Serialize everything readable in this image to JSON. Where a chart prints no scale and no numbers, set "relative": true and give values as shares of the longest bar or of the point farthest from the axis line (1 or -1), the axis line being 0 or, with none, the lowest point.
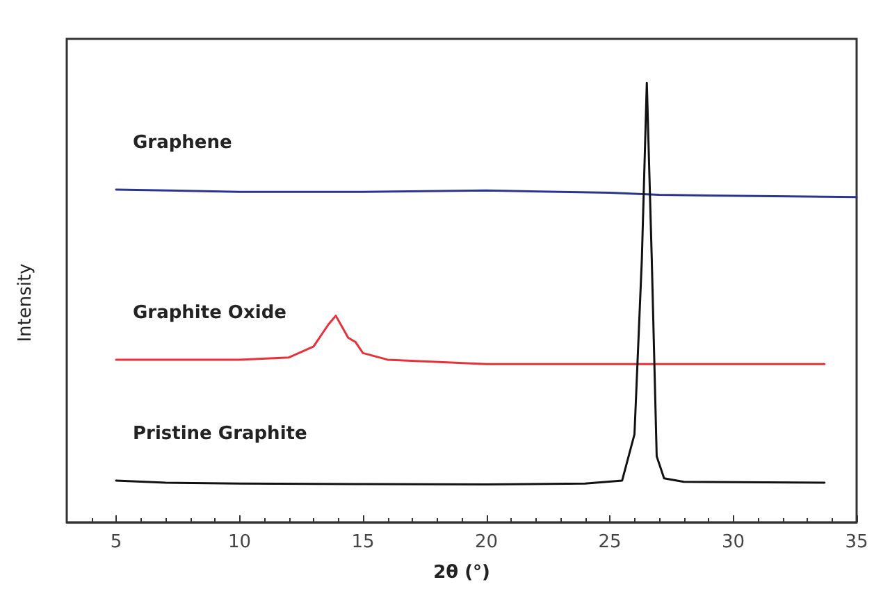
{
  "chart_data": {
    "type": "line",
    "relative": true,
    "xlabel": "2θ (°)",
    "ylabel": "Intensity",
    "xlim": [
      3,
      35
    ],
    "xticks": [
      5,
      10,
      15,
      20,
      25,
      30,
      35
    ],
    "grid": false,
    "legend": false,
    "marker": "none",
    "line_style": "solid",
    "series": [
      {
        "name": "Graphene",
        "color": "#2a3590",
        "x": [
          5,
          10,
          15,
          20,
          25,
          27,
          35
        ],
        "values": [
          0.757,
          0.752,
          0.752,
          0.755,
          0.75,
          0.745,
          0.74
        ]
      },
      {
        "name": "Graphite Oxide",
        "color": "#e8303a",
        "x": [
          5,
          10,
          12,
          13,
          13.6,
          13.9,
          14.2,
          14.4,
          14.7,
          15,
          16,
          20,
          25,
          33.7
        ],
        "values": [
          0.37,
          0.37,
          0.375,
          0.4,
          0.45,
          0.47,
          0.44,
          0.42,
          0.41,
          0.385,
          0.37,
          0.36,
          0.36,
          0.36
        ]
      },
      {
        "name": "Pristine Graphite",
        "color": "#111111",
        "x": [
          5,
          7,
          10,
          15,
          20,
          24,
          25.5,
          26,
          26.3,
          26.5,
          26.7,
          26.9,
          27.2,
          28,
          33.7
        ],
        "values": [
          0.095,
          0.09,
          0.088,
          0.087,
          0.086,
          0.088,
          0.095,
          0.2,
          0.6,
          1,
          0.6,
          0.15,
          0.1,
          0.092,
          0.09
        ]
      }
    ]
  }
}
